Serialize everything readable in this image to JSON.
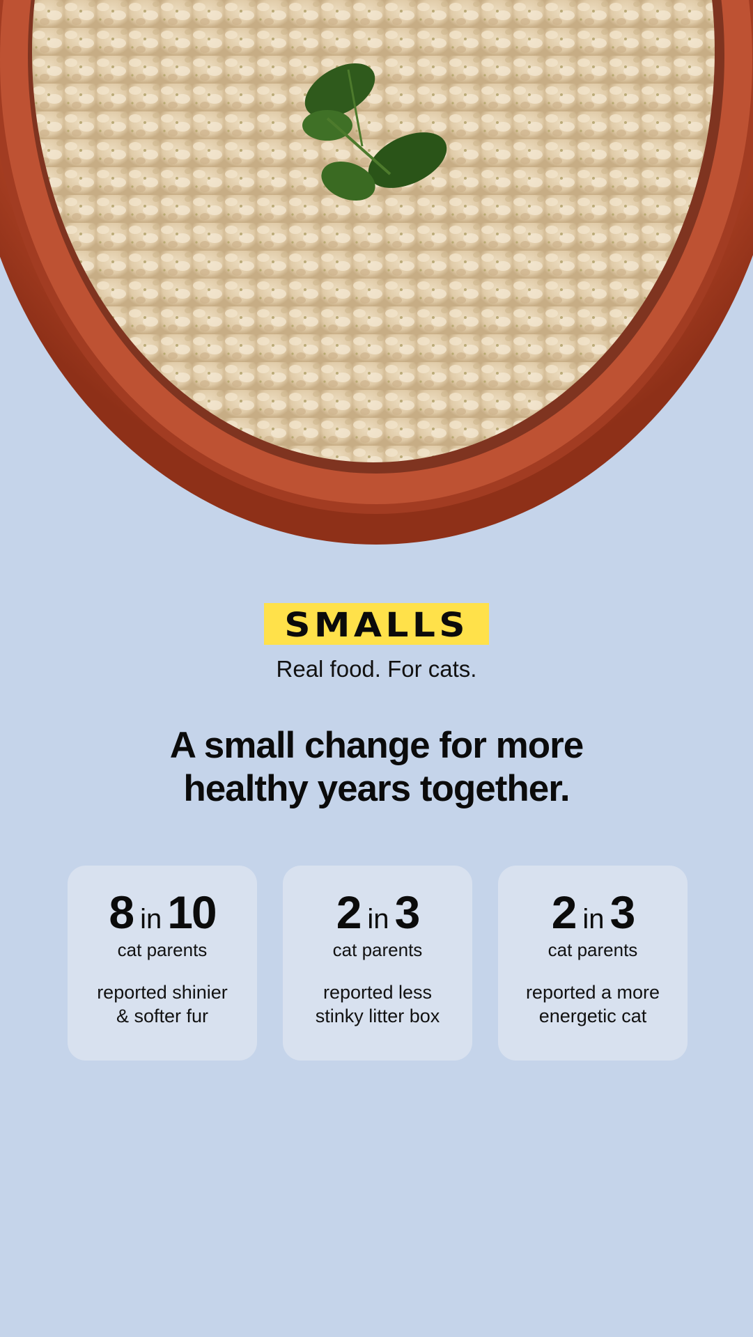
{
  "hero": {
    "image": "bowl-of-ground-cat-food-with-parsley",
    "bowl_color": "#b4472a",
    "food_color": "#e6d4b4",
    "garnish_color": "#2f5a1c"
  },
  "brand": {
    "logo_text": "SMALLS",
    "logo_bg": "#ffe14a",
    "tagline": "Real food. For cats."
  },
  "headline": {
    "line1": "A small change for more",
    "line2": "healthy years together."
  },
  "stats": [
    {
      "num": "8",
      "connector": "in",
      "den": "10",
      "who": "cat parents",
      "desc1": "reported shinier",
      "desc2": "& softer fur"
    },
    {
      "num": "2",
      "connector": "in",
      "den": "3",
      "who": "cat parents",
      "desc1": "reported less",
      "desc2": "stinky litter box"
    },
    {
      "num": "2",
      "connector": "in",
      "den": "3",
      "who": "cat parents",
      "desc1": "reported a more",
      "desc2": "energetic cat"
    }
  ],
  "colors": {
    "background": "#c5d4ea",
    "card": "#d8e1ef"
  }
}
